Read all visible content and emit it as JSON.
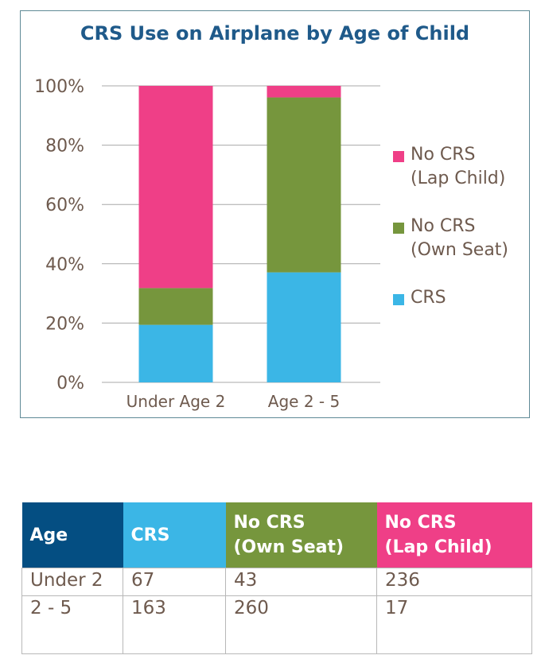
{
  "chart_data": {
    "type": "bar",
    "stacked": true,
    "title": "CRS Use on Airplane by Age of Child",
    "categories": [
      "Under Age 2",
      "Age 2 - 5"
    ],
    "series": [
      {
        "name": "CRS",
        "color": "#3bb6e6",
        "values": [
          19.4,
          37.1
        ]
      },
      {
        "name": "No CRS (Own Seat)",
        "color": "#76963d",
        "values": [
          12.4,
          59.0
        ]
      },
      {
        "name": "No CRS (Lap Child)",
        "color": "#ef3f87",
        "values": [
          68.2,
          3.9
        ]
      }
    ],
    "ylim": [
      0,
      100
    ],
    "yticks": [
      "0%",
      "20%",
      "40%",
      "60%",
      "80%",
      "100%"
    ],
    "ytick_values": [
      0,
      20,
      40,
      60,
      80,
      100
    ],
    "grid": true,
    "legend_position": "right"
  },
  "legend": {
    "items": [
      {
        "lines": [
          "No CRS",
          "(Lap Child)"
        ],
        "color": "#ef3f87"
      },
      {
        "lines": [
          "No CRS",
          "(Own Seat)"
        ],
        "color": "#76963d"
      },
      {
        "lines": [
          "CRS"
        ],
        "color": "#3bb6e6"
      }
    ]
  },
  "table": {
    "headers": [
      {
        "lines": [
          "Age"
        ],
        "color": "#044e82"
      },
      {
        "lines": [
          "CRS"
        ],
        "color": "#3bb6e6"
      },
      {
        "lines": [
          "No CRS",
          "(Own Seat)"
        ],
        "color": "#76963d"
      },
      {
        "lines": [
          "No CRS",
          "(Lap Child)"
        ],
        "color": "#ef3f87"
      }
    ],
    "rows": [
      [
        "Under 2",
        "67",
        "43",
        "236"
      ],
      [
        "2 - 5",
        "163",
        "260",
        "17"
      ]
    ]
  }
}
